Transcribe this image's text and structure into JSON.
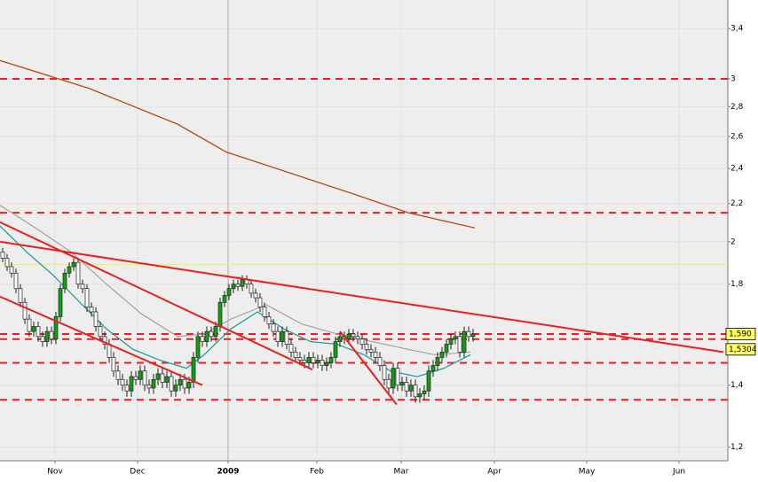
{
  "chart_data": {
    "type": "candlestick",
    "log_scale": true,
    "grid": true,
    "xlim": [
      -0.6,
      163.4
    ],
    "ylim": [
      1.16,
      3.65
    ],
    "xticks": [
      {
        "value": 11.8,
        "label": "Nov"
      },
      {
        "value": 30.4,
        "label": "Dec"
      },
      {
        "value": 50.8,
        "label": "2009"
      },
      {
        "value": 70.8,
        "label": "Feb"
      },
      {
        "value": 89.8,
        "label": "Mar"
      },
      {
        "value": 110.8,
        "label": "Apr"
      },
      {
        "value": 131.6,
        "label": "May"
      },
      {
        "value": 152.4,
        "label": "Jun"
      }
    ],
    "yticks": [
      {
        "value": 1.2,
        "label": "1,2"
      },
      {
        "value": 1.4,
        "label": "1,4"
      },
      {
        "value": 1.8,
        "label": "1,8"
      },
      2,
      {
        "value": 2.2,
        "label": "2,2"
      },
      {
        "value": 2.4,
        "label": "2,4"
      },
      {
        "value": 2.6,
        "label": "2,6"
      },
      {
        "value": 2.8,
        "label": "2,8"
      },
      3,
      {
        "value": 3.4,
        "label": "3,4"
      }
    ],
    "up_color": "#10a010",
    "down_color": "#ffffff",
    "x": [
      0,
      1,
      2,
      3,
      4,
      5,
      6,
      7,
      8,
      9,
      10,
      11,
      12,
      13,
      14,
      15,
      16,
      17,
      18,
      19,
      20,
      21,
      22,
      23,
      24,
      25,
      26,
      27,
      28,
      29,
      30,
      31,
      32,
      33,
      34,
      35,
      36,
      37,
      38,
      39,
      40,
      41,
      42,
      43,
      44,
      45,
      46,
      47,
      48,
      49,
      50,
      51,
      52,
      53,
      54,
      55,
      56,
      57,
      58,
      59,
      60,
      61,
      62,
      63,
      64,
      65,
      66,
      67,
      68,
      69,
      70,
      71,
      72,
      73,
      74,
      75,
      76,
      77,
      78,
      79,
      80,
      81,
      82,
      83,
      84,
      85,
      86,
      87,
      88,
      89,
      90,
      91,
      92,
      93,
      94,
      95,
      96,
      97,
      98,
      99,
      100,
      101,
      102,
      103,
      104,
      105,
      106
    ],
    "open": [
      1.95,
      1.92,
      1.88,
      1.85,
      1.78,
      1.72,
      1.65,
      1.6,
      1.62,
      1.58,
      1.56,
      1.6,
      1.57,
      1.66,
      1.78,
      1.85,
      1.88,
      1.9,
      1.8,
      1.78,
      1.7,
      1.68,
      1.62,
      1.58,
      1.55,
      1.5,
      1.45,
      1.42,
      1.4,
      1.38,
      1.43,
      1.42,
      1.45,
      1.4,
      1.39,
      1.42,
      1.44,
      1.41,
      1.43,
      1.38,
      1.4,
      1.42,
      1.39,
      1.41,
      1.5,
      1.58,
      1.56,
      1.6,
      1.58,
      1.62,
      1.72,
      1.75,
      1.78,
      1.8,
      1.79,
      1.82,
      1.8,
      1.76,
      1.74,
      1.7,
      1.66,
      1.63,
      1.6,
      1.56,
      1.6,
      1.55,
      1.52,
      1.5,
      1.49,
      1.48,
      1.5,
      1.48,
      1.49,
      1.47,
      1.48,
      1.5,
      1.56,
      1.58,
      1.57,
      1.59,
      1.58,
      1.57,
      1.55,
      1.53,
      1.52,
      1.5,
      1.47,
      1.42,
      1.39,
      1.46,
      1.4,
      1.41,
      1.38,
      1.4,
      1.36,
      1.37,
      1.38,
      1.45,
      1.47,
      1.5,
      1.52,
      1.55,
      1.57,
      1.58,
      1.52,
      1.6,
      1.58
    ],
    "high": [
      1.97,
      1.94,
      1.9,
      1.87,
      1.8,
      1.74,
      1.67,
      1.64,
      1.64,
      1.6,
      1.62,
      1.62,
      1.68,
      1.8,
      1.87,
      1.9,
      1.92,
      1.92,
      1.82,
      1.8,
      1.72,
      1.7,
      1.64,
      1.6,
      1.57,
      1.52,
      1.47,
      1.44,
      1.42,
      1.45,
      1.45,
      1.47,
      1.47,
      1.42,
      1.44,
      1.46,
      1.46,
      1.45,
      1.45,
      1.42,
      1.44,
      1.44,
      1.43,
      1.52,
      1.6,
      1.6,
      1.62,
      1.62,
      1.64,
      1.74,
      1.77,
      1.8,
      1.82,
      1.82,
      1.84,
      1.84,
      1.82,
      1.78,
      1.76,
      1.72,
      1.68,
      1.65,
      1.62,
      1.62,
      1.62,
      1.57,
      1.54,
      1.52,
      1.51,
      1.52,
      1.52,
      1.51,
      1.51,
      1.5,
      1.52,
      1.58,
      1.6,
      1.6,
      1.61,
      1.61,
      1.6,
      1.59,
      1.57,
      1.55,
      1.54,
      1.52,
      1.49,
      1.44,
      1.48,
      1.48,
      1.43,
      1.43,
      1.42,
      1.42,
      1.39,
      1.4,
      1.47,
      1.49,
      1.52,
      1.54,
      1.57,
      1.59,
      1.6,
      1.6,
      1.62,
      1.62,
      1.61
    ],
    "low": [
      1.9,
      1.86,
      1.83,
      1.76,
      1.7,
      1.63,
      1.58,
      1.58,
      1.56,
      1.54,
      1.54,
      1.55,
      1.55,
      1.64,
      1.76,
      1.83,
      1.86,
      1.78,
      1.76,
      1.68,
      1.66,
      1.6,
      1.56,
      1.53,
      1.48,
      1.43,
      1.4,
      1.38,
      1.36,
      1.36,
      1.4,
      1.4,
      1.38,
      1.37,
      1.37,
      1.4,
      1.39,
      1.39,
      1.36,
      1.36,
      1.38,
      1.37,
      1.37,
      1.39,
      1.48,
      1.54,
      1.54,
      1.56,
      1.56,
      1.6,
      1.7,
      1.73,
      1.76,
      1.77,
      1.77,
      1.78,
      1.74,
      1.72,
      1.68,
      1.64,
      1.61,
      1.58,
      1.54,
      1.54,
      1.53,
      1.5,
      1.48,
      1.47,
      1.46,
      1.46,
      1.46,
      1.46,
      1.45,
      1.45,
      1.46,
      1.48,
      1.54,
      1.55,
      1.55,
      1.56,
      1.55,
      1.53,
      1.51,
      1.5,
      1.48,
      1.45,
      1.4,
      1.37,
      1.37,
      1.38,
      1.38,
      1.36,
      1.36,
      1.34,
      1.34,
      1.35,
      1.36,
      1.43,
      1.45,
      1.48,
      1.5,
      1.53,
      1.55,
      1.5,
      1.5,
      1.56,
      1.56
    ],
    "close": [
      1.92,
      1.88,
      1.85,
      1.78,
      1.72,
      1.65,
      1.6,
      1.62,
      1.58,
      1.56,
      1.6,
      1.57,
      1.66,
      1.78,
      1.85,
      1.88,
      1.9,
      1.8,
      1.78,
      1.7,
      1.68,
      1.62,
      1.58,
      1.55,
      1.5,
      1.45,
      1.42,
      1.4,
      1.38,
      1.43,
      1.42,
      1.45,
      1.4,
      1.39,
      1.42,
      1.44,
      1.41,
      1.43,
      1.38,
      1.4,
      1.42,
      1.39,
      1.41,
      1.5,
      1.58,
      1.56,
      1.6,
      1.58,
      1.62,
      1.72,
      1.75,
      1.78,
      1.8,
      1.79,
      1.82,
      1.8,
      1.76,
      1.74,
      1.7,
      1.66,
      1.63,
      1.6,
      1.56,
      1.6,
      1.55,
      1.52,
      1.5,
      1.49,
      1.48,
      1.5,
      1.48,
      1.49,
      1.47,
      1.48,
      1.5,
      1.56,
      1.58,
      1.57,
      1.59,
      1.58,
      1.57,
      1.55,
      1.53,
      1.52,
      1.5,
      1.47,
      1.42,
      1.39,
      1.46,
      1.4,
      1.41,
      1.38,
      1.4,
      1.36,
      1.37,
      1.38,
      1.45,
      1.47,
      1.5,
      1.52,
      1.55,
      1.57,
      1.58,
      1.52,
      1.6,
      1.58,
      1.59
    ],
    "lines": [
      {
        "color": "#b84a10",
        "x": [
          -0.6,
          19.4,
          39.4,
          50.4,
          59.4,
          79.4,
          91.4,
          106.4
        ],
        "values": [
          3.14,
          2.93,
          2.68,
          2.5,
          2.42,
          2.25,
          2.15,
          2.07
        ]
      },
      {
        "color": "#a8a8a8",
        "x": [
          -0.6,
          7.4,
          15.4,
          23.4,
          31.4,
          39.4,
          45.4,
          51.4,
          59.4,
          67.4,
          75.4,
          83.4,
          91.4,
          97.4,
          105.4
        ],
        "values": [
          2.19,
          2.07,
          1.95,
          1.8,
          1.67,
          1.58,
          1.59,
          1.65,
          1.71,
          1.63,
          1.59,
          1.56,
          1.53,
          1.51,
          1.52
        ]
      },
      {
        "color": "#20a0a0",
        "x": [
          -0.6,
          5.4,
          11.4,
          17.4,
          23.4,
          29.4,
          35.4,
          41.4,
          45.4,
          51.4,
          57.4,
          63.4,
          69.4,
          75.4,
          81.4,
          87.4,
          93.4,
          99.4,
          105.4
        ],
        "values": [
          2.08,
          1.95,
          1.84,
          1.72,
          1.61,
          1.53,
          1.49,
          1.46,
          1.51,
          1.61,
          1.68,
          1.61,
          1.56,
          1.55,
          1.51,
          1.45,
          1.43,
          1.46,
          1.51
        ]
      }
    ],
    "trendlines": [
      {
        "color": "#e82020",
        "x": [
          -0.6,
          162.4
        ],
        "values": [
          2.0,
          1.52
        ]
      },
      {
        "color": "#e82020",
        "x": [
          -0.6,
          69.8
        ],
        "values": [
          2.1,
          1.455
        ]
      },
      {
        "color": "#e82020",
        "x": [
          -0.6,
          45
        ],
        "values": [
          1.745,
          1.4
        ]
      },
      {
        "color": "#e82020",
        "x": [
          76,
          88.8
        ],
        "values": [
          1.6,
          1.334
        ]
      }
    ],
    "levels": [
      {
        "value": 3.0,
        "color": "#e82020"
      },
      {
        "value": 2.15,
        "color": "#e82020"
      },
      {
        "value": 1.89,
        "color": "#f0f060"
      },
      {
        "value": 1.59,
        "color": "#e82020"
      },
      {
        "value": 1.57,
        "color": "#e82020"
      },
      {
        "value": 1.48,
        "color": "#e82020"
      },
      {
        "value": 1.35,
        "color": "#e82020"
      }
    ],
    "price_labels": [
      {
        "value": 1.59,
        "label": "1,590"
      },
      {
        "value": 1.5304,
        "label": "1,5304"
      }
    ]
  }
}
